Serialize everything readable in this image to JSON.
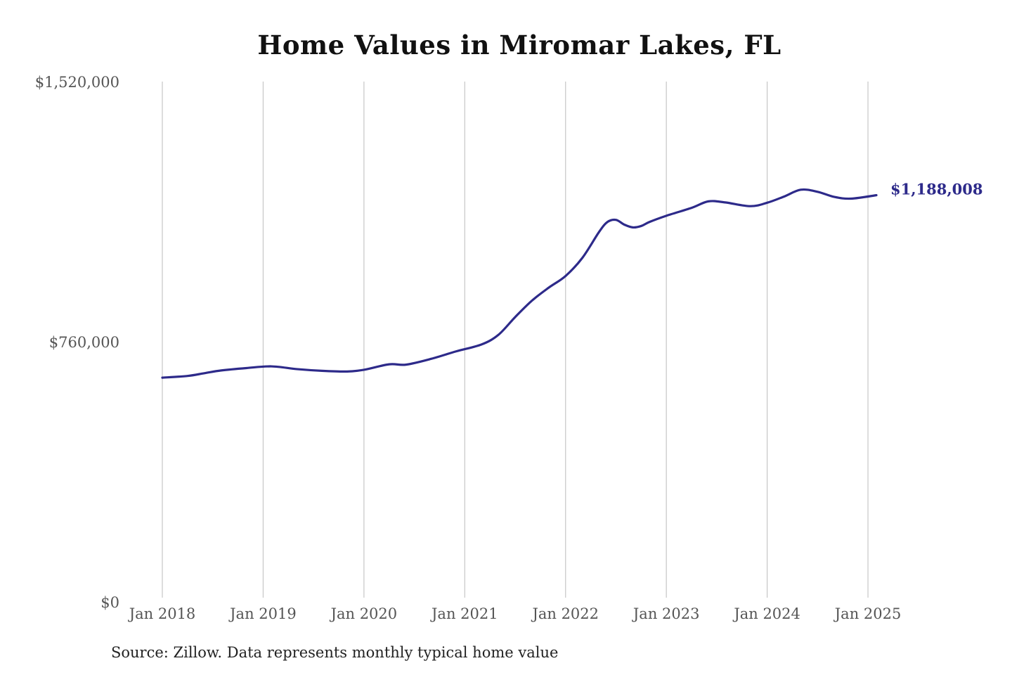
{
  "chart_data": {
    "type": "line",
    "title": "Home Values in Miromar Lakes, FL",
    "xlabel": "",
    "ylabel": "",
    "ylim": [
      0,
      1520000
    ],
    "y_ticks": [
      "$1,520,000",
      "$760,000",
      "$0"
    ],
    "y_tick_values": [
      1520000,
      760000,
      0
    ],
    "x_ticks": [
      "Jan 2018",
      "Jan 2019",
      "Jan 2020",
      "Jan 2021",
      "Jan 2022",
      "Jan 2023",
      "Jan 2024",
      "Jan 2025"
    ],
    "x_tick_values": [
      "2018-01",
      "2019-01",
      "2020-01",
      "2021-01",
      "2022-01",
      "2023-01",
      "2024-01",
      "2025-01"
    ],
    "xlim": [
      "2018-01",
      "2025-02"
    ],
    "grid": "vertical",
    "legend": "none",
    "line_color": "#2d2a8a",
    "end_label": "$1,188,008",
    "series": [
      {
        "x": [
          "2018-01",
          "2018-04",
          "2018-06",
          "2018-08",
          "2018-11",
          "2019-02",
          "2019-05",
          "2019-08",
          "2019-11",
          "2020-01",
          "2020-04",
          "2020-06",
          "2020-09",
          "2020-12",
          "2021-03",
          "2021-05",
          "2021-07",
          "2021-09",
          "2021-11",
          "2022-01",
          "2022-03",
          "2022-05",
          "2022-06",
          "2022-07",
          "2022-08",
          "2022-09",
          "2022-10",
          "2022-11",
          "2023-01",
          "2023-04",
          "2023-06",
          "2023-08",
          "2023-11",
          "2024-01",
          "2024-03",
          "2024-05",
          "2024-07",
          "2024-09",
          "2024-11",
          "2025-02"
        ],
        "y": [
          655000,
          660000,
          668000,
          676000,
          683000,
          688000,
          680000,
          675000,
          673000,
          678000,
          694000,
          693000,
          710000,
          732000,
          752000,
          780000,
          832000,
          880000,
          918000,
          952000,
          1005000,
          1081000,
          1110000,
          1116000,
          1102000,
          1094000,
          1098000,
          1110000,
          1128000,
          1151000,
          1170000,
          1167000,
          1156000,
          1166000,
          1184000,
          1204000,
          1198000,
          1183000,
          1178000,
          1188008
        ]
      }
    ]
  },
  "source_note": "Source: Zillow. Data represents monthly typical home value"
}
